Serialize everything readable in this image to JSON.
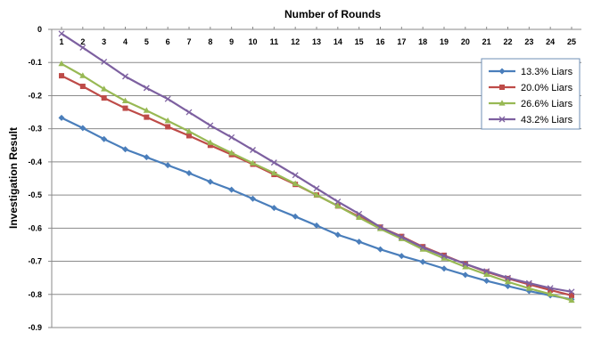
{
  "chart_data": {
    "type": "line",
    "title": "Number of Rounds",
    "xlabel": "",
    "ylabel": "Investigation Result",
    "x": [
      1,
      2,
      3,
      4,
      5,
      6,
      7,
      8,
      9,
      10,
      11,
      12,
      13,
      14,
      15,
      16,
      17,
      18,
      19,
      20,
      21,
      22,
      23,
      24,
      25
    ],
    "ylim": [
      -0.9,
      0
    ],
    "yticks": [
      "0",
      "-0.1",
      "-0.2",
      "-0.3",
      "-0.4",
      "-0.5",
      "-0.6",
      "-0.7",
      "-0.8",
      "-0.9"
    ],
    "xaxis_position": "top",
    "grid": "horizontal",
    "legend_position": "top-right",
    "series": [
      {
        "name": "13.3% Liars",
        "color": "#4a7ebb",
        "marker": "diamond",
        "values": [
          -0.267,
          -0.298,
          -0.331,
          -0.362,
          -0.386,
          -0.41,
          -0.434,
          -0.46,
          -0.484,
          -0.511,
          -0.539,
          -0.565,
          -0.592,
          -0.62,
          -0.641,
          -0.664,
          -0.684,
          -0.702,
          -0.722,
          -0.741,
          -0.759,
          -0.775,
          -0.79,
          -0.803,
          -0.815
        ]
      },
      {
        "name": "20.0% Liars",
        "color": "#be4b48",
        "marker": "square",
        "values": [
          -0.14,
          -0.172,
          -0.207,
          -0.238,
          -0.265,
          -0.294,
          -0.321,
          -0.35,
          -0.378,
          -0.407,
          -0.438,
          -0.468,
          -0.5,
          -0.533,
          -0.565,
          -0.597,
          -0.625,
          -0.656,
          -0.682,
          -0.708,
          -0.732,
          -0.752,
          -0.77,
          -0.787,
          -0.803
        ]
      },
      {
        "name": "26.6% Liars",
        "color": "#98b954",
        "marker": "triangle",
        "values": [
          -0.104,
          -0.14,
          -0.18,
          -0.216,
          -0.245,
          -0.276,
          -0.308,
          -0.342,
          -0.373,
          -0.404,
          -0.434,
          -0.466,
          -0.5,
          -0.533,
          -0.568,
          -0.602,
          -0.632,
          -0.664,
          -0.691,
          -0.717,
          -0.74,
          -0.762,
          -0.782,
          -0.799,
          -0.818
        ]
      },
      {
        "name": "43.2% Liars",
        "color": "#7d60a0",
        "marker": "x",
        "values": [
          -0.013,
          -0.055,
          -0.098,
          -0.142,
          -0.177,
          -0.21,
          -0.25,
          -0.29,
          -0.326,
          -0.364,
          -0.402,
          -0.44,
          -0.48,
          -0.52,
          -0.557,
          -0.597,
          -0.627,
          -0.658,
          -0.684,
          -0.708,
          -0.73,
          -0.75,
          -0.766,
          -0.781,
          -0.792
        ]
      }
    ]
  }
}
